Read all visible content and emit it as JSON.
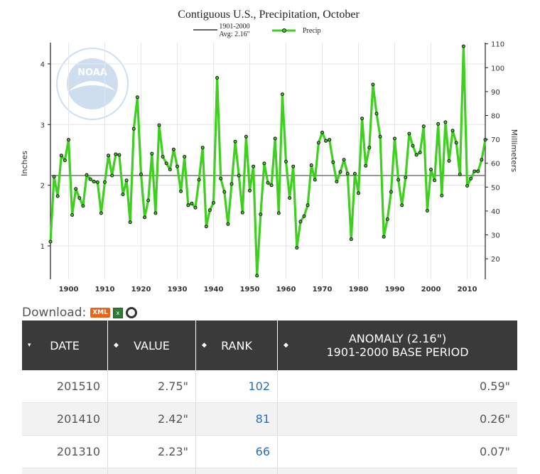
{
  "chart_data": {
    "type": "line",
    "title": "Contiguous U.S., Precipitation, October",
    "legend": {
      "avg_line_1": "1901-2000",
      "avg_line_2": "Avg: 2.16\"",
      "series_label": "Precip"
    },
    "ylabel_left": "Inches",
    "ylabel_right": "Millimeters",
    "left_ticks": [
      "1",
      "2",
      "3",
      "4"
    ],
    "right_ticks": [
      "20",
      "30",
      "40",
      "50",
      "60",
      "70",
      "80",
      "90",
      "100",
      "110"
    ],
    "x_ticks": [
      "1900",
      "1910",
      "1920",
      "1930",
      "1940",
      "1950",
      "1960",
      "1970",
      "1980",
      "1990",
      "2000",
      "2010"
    ],
    "xlim": [
      1895,
      2015
    ],
    "ylim": [
      0.45,
      4.35
    ],
    "average": 2.16,
    "x": [
      1895,
      1896,
      1897,
      1898,
      1899,
      1900,
      1901,
      1902,
      1903,
      1904,
      1905,
      1906,
      1907,
      1908,
      1909,
      1910,
      1911,
      1912,
      1913,
      1914,
      1915,
      1916,
      1917,
      1918,
      1919,
      1920,
      1921,
      1922,
      1923,
      1924,
      1925,
      1926,
      1927,
      1928,
      1929,
      1930,
      1931,
      1932,
      1933,
      1934,
      1935,
      1936,
      1937,
      1938,
      1939,
      1940,
      1941,
      1942,
      1943,
      1944,
      1945,
      1946,
      1947,
      1948,
      1949,
      1950,
      1951,
      1952,
      1953,
      1954,
      1955,
      1956,
      1957,
      1958,
      1959,
      1960,
      1961,
      1962,
      1963,
      1964,
      1965,
      1966,
      1967,
      1968,
      1969,
      1970,
      1971,
      1972,
      1973,
      1974,
      1975,
      1976,
      1977,
      1978,
      1979,
      1980,
      1981,
      1982,
      1983,
      1984,
      1985,
      1986,
      1987,
      1988,
      1989,
      1990,
      1991,
      1992,
      1993,
      1994,
      1995,
      1996,
      1997,
      1998,
      1999,
      2000,
      2001,
      2002,
      2003,
      2004,
      2005,
      2006,
      2007,
      2008,
      2009,
      2010,
      2011,
      2012,
      2013,
      2014,
      2015
    ],
    "values": [
      1.07,
      2.14,
      1.82,
      2.49,
      2.41,
      2.75,
      1.51,
      1.94,
      1.79,
      1.66,
      2.17,
      2.1,
      2.06,
      2.05,
      1.54,
      2.05,
      2.49,
      2.16,
      2.51,
      2.5,
      1.85,
      2.08,
      1.39,
      2.93,
      3.45,
      2.18,
      1.47,
      1.75,
      2.52,
      1.54,
      2.99,
      2.47,
      2.36,
      2.26,
      2.59,
      2.31,
      1.9,
      2.47,
      1.67,
      1.7,
      1.63,
      2.09,
      2.62,
      1.32,
      1.59,
      1.71,
      3.77,
      2.11,
      1.89,
      1.36,
      2.02,
      2.72,
      2.16,
      1.55,
      2.8,
      1.91,
      2.31,
      0.51,
      1.52,
      2.36,
      2.04,
      2.0,
      2.77,
      1.54,
      3.5,
      2.39,
      1.79,
      2.31,
      0.97,
      1.4,
      1.49,
      1.67,
      2.33,
      2.09,
      2.7,
      2.87,
      2.73,
      2.75,
      2.38,
      2.06,
      2.22,
      2.42,
      2.19,
      1.11,
      2.19,
      1.87,
      3.1,
      2.32,
      2.62,
      3.66,
      3.18,
      2.8,
      1.15,
      1.44,
      1.89,
      2.77,
      2.09,
      1.67,
      2.13,
      2.85,
      2.65,
      2.5,
      2.54,
      2.97,
      1.58,
      2.26,
      2.08,
      3.01,
      1.83,
      3.04,
      2.4,
      2.9,
      2.7,
      2.18,
      4.29,
      1.99,
      2.11,
      2.23,
      2.23,
      2.42,
      2.75
    ]
  },
  "download": {
    "label": "Download:",
    "xml_label": "XML"
  },
  "table": {
    "headers": {
      "date": "DATE",
      "value": "VALUE",
      "rank": "RANK",
      "anomaly_line1": "ANOMALY (2.16\")",
      "anomaly_line2": "1901-2000 BASE PERIOD"
    },
    "rows": [
      {
        "date": "201510",
        "value": "2.75\"",
        "rank": "102",
        "anomaly": "0.59\""
      },
      {
        "date": "201410",
        "value": "2.42\"",
        "rank": "81",
        "anomaly": "0.26\""
      },
      {
        "date": "201310",
        "value": "2.23\"",
        "rank": "66",
        "anomaly": "0.07\""
      }
    ]
  },
  "colors": {
    "series": "#3ecf1f",
    "average": "#777777",
    "header_bg": "#3a3a3a",
    "rank_link": "#2a6ebb"
  }
}
